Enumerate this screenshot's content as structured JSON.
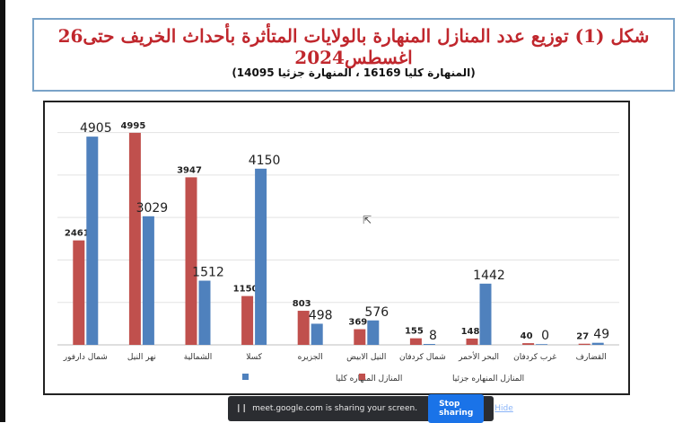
{
  "title": "شكل (1) توزيع عدد المنازل المنهارة بالولايات المتأثرة بأحداث الخريف حتى26 اغسطس2024",
  "subtitle": "(المنهارة كليا 16169 ، المنهارة جزئيا 14095)",
  "colors": {
    "partial": "#c0504d",
    "full": "#4f81bd",
    "title": "#c0272d",
    "frame": "#7aa3c8"
  },
  "chart_data": {
    "type": "bar",
    "categories": [
      "شمال دارفور",
      "نهر النيل",
      "الشمالية",
      "كسلا",
      "الجزيره",
      "النيل الابيض",
      "شمال كردفان",
      "البحر الأحمر",
      "غرب كردفان",
      "القضارف"
    ],
    "series": [
      {
        "name": "المنازل المنهاره جزئيا",
        "values": [
          2461,
          4995,
          3947,
          1150,
          803,
          369,
          155,
          148,
          40,
          27
        ],
        "color": "#c0504d"
      },
      {
        "name": "المنازل المنهاره كليا",
        "values": [
          4905,
          3029,
          1512,
          4150,
          498,
          576,
          8,
          1442,
          0,
          49
        ],
        "color": "#4f81bd"
      }
    ],
    "ylim": [
      0,
      5500
    ],
    "grid": true,
    "legend": "bottom"
  },
  "sharing": {
    "text": "meet.google.com is sharing your screen.",
    "stop_label": "Stop sharing",
    "hide_label": "Hide",
    "pause_icon": "pause-icon"
  }
}
